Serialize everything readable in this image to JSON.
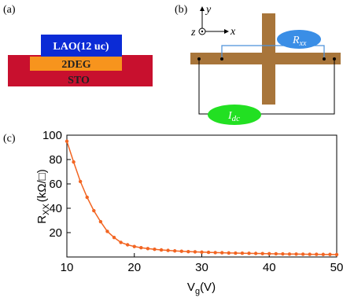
{
  "panel_a": {
    "label": "(a)",
    "lao": "LAO(12 uc)",
    "twodeg": "2DEG",
    "sto": "STO"
  },
  "panel_b": {
    "label": "(b)",
    "axis_y": "y",
    "axis_x": "x",
    "axis_z": "z",
    "rxx_main": "R",
    "rxx_sub": "xx",
    "idc_main": "I",
    "idc_sub": "dc"
  },
  "chart_data": {
    "type": "line",
    "panel_label": "(c)",
    "x_label": {
      "main": "V",
      "sub": "g",
      "unit": "(V)"
    },
    "y_label": {
      "main": "R",
      "sub": "XX",
      "unit": "(kΩ/□)"
    },
    "x": [
      10,
      11,
      12,
      13,
      14,
      15,
      16,
      17,
      18,
      19,
      20,
      21,
      22,
      23,
      24,
      25,
      26,
      27,
      28,
      29,
      30,
      31,
      32,
      33,
      34,
      35,
      36,
      37,
      38,
      39,
      40,
      41,
      42,
      43,
      44,
      45,
      46,
      47,
      48,
      49,
      50
    ],
    "series": [
      {
        "color": "#f26522",
        "values": [
          95,
          78,
          62,
          49,
          38,
          29,
          21,
          16,
          12,
          10,
          8.6,
          7.6,
          6.9,
          6.3,
          5.8,
          5.4,
          5.0,
          4.7,
          4.4,
          4.2,
          4.0,
          3.8,
          3.6,
          3.5,
          3.3,
          3.2,
          3.1,
          3.0,
          2.9,
          2.8,
          2.7,
          2.6,
          2.5,
          2.4,
          2.4,
          2.3,
          2.2,
          2.2,
          2.1,
          2.1,
          2.0
        ]
      }
    ],
    "xlim": [
      10,
      50
    ],
    "ylim": [
      0,
      100
    ],
    "xticks": [
      10,
      20,
      30,
      40,
      50
    ],
    "yticks": [
      20,
      40,
      60,
      80,
      100
    ]
  }
}
